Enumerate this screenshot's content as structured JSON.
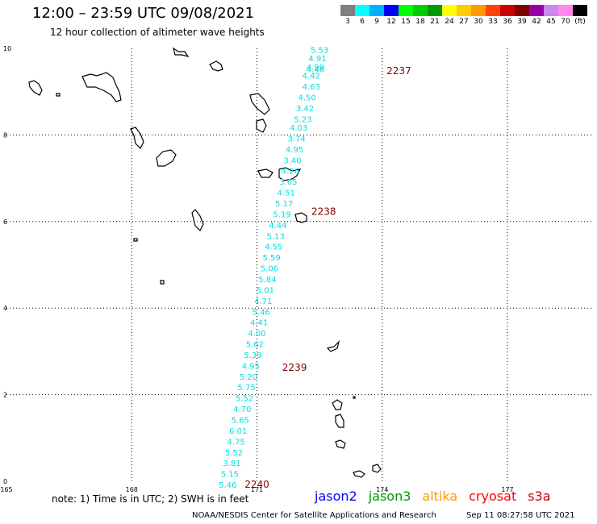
{
  "header": {
    "title": "12:00 – 23:59 UTC 09/08/2021",
    "subtitle": "12 hour collection of altimeter wave heights"
  },
  "color_scale": {
    "colors": [
      "#808080",
      "#00ffff",
      "#00b0ff",
      "#0000ff",
      "#00ff00",
      "#00cc00",
      "#009900",
      "#ffff00",
      "#ffcc00",
      "#ff9900",
      "#ff4400",
      "#cc0000",
      "#800000",
      "#9900aa",
      "#cc88ee",
      "#ff88ee",
      "#000000"
    ],
    "labels": [
      "3",
      "6",
      "9",
      "12",
      "15",
      "18",
      "21",
      "24",
      "27",
      "30",
      "33",
      "36",
      "39",
      "42",
      "45",
      "70",
      "(ft)"
    ]
  },
  "map": {
    "x_ticks": [
      "165",
      "168",
      "171",
      "174",
      "177"
    ],
    "y_ticks": [
      "10",
      "8",
      "6",
      "4",
      "2",
      "0"
    ],
    "track_color": "#00e0e0",
    "time_color": "#800000",
    "wave_heights": [
      {
        "lon": 172.5,
        "lat": 9.9,
        "value": "5.53"
      },
      {
        "lon": 172.45,
        "lat": 9.7,
        "value": "4.91"
      },
      {
        "lon": 172.4,
        "lat": 9.5,
        "value": "4.99"
      },
      {
        "lon": 172.4,
        "lat": 9.45,
        "value": "4.46"
      },
      {
        "lon": 172.3,
        "lat": 9.3,
        "value": "4.42"
      },
      {
        "lon": 172.3,
        "lat": 9.05,
        "value": "4.63"
      },
      {
        "lon": 172.2,
        "lat": 8.8,
        "value": "4.50"
      },
      {
        "lon": 172.15,
        "lat": 8.55,
        "value": "3.42"
      },
      {
        "lon": 172.1,
        "lat": 8.3,
        "value": "5.23"
      },
      {
        "lon": 172.0,
        "lat": 8.1,
        "value": "4.03"
      },
      {
        "lon": 171.95,
        "lat": 7.85,
        "value": "3.74"
      },
      {
        "lon": 171.9,
        "lat": 7.6,
        "value": "4.95"
      },
      {
        "lon": 171.85,
        "lat": 7.35,
        "value": "3.40"
      },
      {
        "lon": 171.8,
        "lat": 7.1,
        "value": "4.26"
      },
      {
        "lon": 171.75,
        "lat": 6.85,
        "value": "3.65"
      },
      {
        "lon": 171.7,
        "lat": 6.6,
        "value": "4.51"
      },
      {
        "lon": 171.65,
        "lat": 6.35,
        "value": "5.17"
      },
      {
        "lon": 171.6,
        "lat": 6.1,
        "value": "5.19"
      },
      {
        "lon": 171.5,
        "lat": 5.85,
        "value": "4.44"
      },
      {
        "lon": 171.45,
        "lat": 5.6,
        "value": "5.13"
      },
      {
        "lon": 171.4,
        "lat": 5.35,
        "value": "4.55"
      },
      {
        "lon": 171.35,
        "lat": 5.1,
        "value": "5.59"
      },
      {
        "lon": 171.3,
        "lat": 4.85,
        "value": "5.06"
      },
      {
        "lon": 171.25,
        "lat": 4.6,
        "value": "5.84"
      },
      {
        "lon": 171.2,
        "lat": 4.35,
        "value": "5.01"
      },
      {
        "lon": 171.15,
        "lat": 4.1,
        "value": "4.71"
      },
      {
        "lon": 171.1,
        "lat": 3.85,
        "value": "5.46"
      },
      {
        "lon": 171.05,
        "lat": 3.6,
        "value": "4.41"
      },
      {
        "lon": 171.0,
        "lat": 3.35,
        "value": "4.00"
      },
      {
        "lon": 170.95,
        "lat": 3.1,
        "value": "5.62"
      },
      {
        "lon": 170.9,
        "lat": 2.85,
        "value": "5.39"
      },
      {
        "lon": 170.85,
        "lat": 2.6,
        "value": "4.95"
      },
      {
        "lon": 170.8,
        "lat": 2.35,
        "value": "5.20"
      },
      {
        "lon": 170.75,
        "lat": 2.1,
        "value": "5.75"
      },
      {
        "lon": 170.7,
        "lat": 1.85,
        "value": "5.52"
      },
      {
        "lon": 170.65,
        "lat": 1.6,
        "value": "4.70"
      },
      {
        "lon": 170.6,
        "lat": 1.35,
        "value": "5.65"
      },
      {
        "lon": 170.55,
        "lat": 1.1,
        "value": "6.01"
      },
      {
        "lon": 170.5,
        "lat": 0.85,
        "value": "4.75"
      },
      {
        "lon": 170.45,
        "lat": 0.6,
        "value": "5.52"
      },
      {
        "lon": 170.4,
        "lat": 0.35,
        "value": "3.81"
      },
      {
        "lon": 170.35,
        "lat": 0.1,
        "value": "5.15"
      },
      {
        "lon": 170.3,
        "lat": -0.15,
        "value": "5.46"
      }
    ],
    "time_labels": [
      {
        "lon": 174.4,
        "lat": 9.4,
        "value": "2237"
      },
      {
        "lon": 172.6,
        "lat": 6.15,
        "value": "2238"
      },
      {
        "lon": 171.9,
        "lat": 2.55,
        "value": "2239"
      },
      {
        "lon": 171.0,
        "lat": -0.15,
        "value": "2240"
      }
    ]
  },
  "footer": {
    "note": "note: 1) Time is in UTC; 2) SWH is in feet",
    "satellites": [
      {
        "name": "jason2",
        "color": "#0000ff"
      },
      {
        "name": "jason3",
        "color": "#009900"
      },
      {
        "name": "altika",
        "color": "#ff9900"
      },
      {
        "name": "cryosat",
        "color": "#ff0000"
      },
      {
        "name": "s3a",
        "color": "#cc0000"
      }
    ],
    "credit": "NOAA/NESDIS Center for Satellite Applications and Research",
    "timestamp": "Sep 11 08:27:58 UTC 2021"
  }
}
